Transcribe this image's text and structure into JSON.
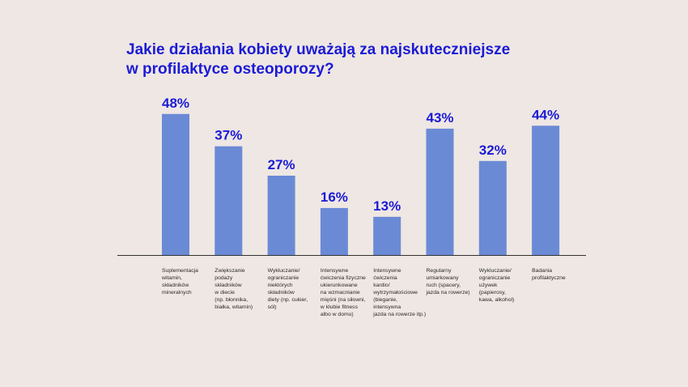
{
  "title": {
    "line1": "Jakie działania kobiety uważają za najskuteczniejsze",
    "line2": "w profilaktyce osteoporozy?"
  },
  "colors": {
    "bar": "#6b8ad6",
    "value_text": "#1b1bd6",
    "axis": "#333333",
    "background": "#efe7e3"
  },
  "chart_data": {
    "type": "bar",
    "title": "Jakie działania kobiety uważają za najskuteczniejsze w profilaktyce osteoporozy?",
    "categories": [
      [
        "Suplementacja",
        "witamin,",
        "składników",
        "mineralnych"
      ],
      [
        "Zwiększanie",
        "podaży",
        "składników",
        "w diecie",
        "(np. błonnika,",
        "białka, witamin)"
      ],
      [
        "Wykluczanie/",
        "ograniczanie",
        "niektórych",
        "składników",
        "diety (np. cukier,",
        "sól)"
      ],
      [
        "Intensywne",
        "ćwiczenia fizyczne",
        "ukierunkowane",
        "na wzmacnianie",
        "mięśni (na siłowni,",
        "w klubie fitness",
        "albo w domu)"
      ],
      [
        "Intensywne",
        "ćwiczenia",
        "kardio/",
        "wytrzymałościowe",
        "(bieganie,",
        "intensywna",
        "jazda na rowerze itp.)"
      ],
      [
        "Regularny",
        "umiarkowany",
        "ruch (spacery,",
        "jazda na rowerze)"
      ],
      [
        "Wykluczanie/",
        "ograniczanie",
        "używek",
        "(papierosy,",
        "kawa, alkohol)"
      ],
      [
        "Badania",
        "profilaktyczne"
      ]
    ],
    "values": [
      48,
      37,
      27,
      16,
      13,
      43,
      32,
      44
    ],
    "value_labels": [
      "48%",
      "37%",
      "27%",
      "16%",
      "13%",
      "43%",
      "32%",
      "44%"
    ],
    "unit": "%",
    "ylim": [
      0,
      50
    ],
    "grid": false,
    "legend": "none"
  }
}
